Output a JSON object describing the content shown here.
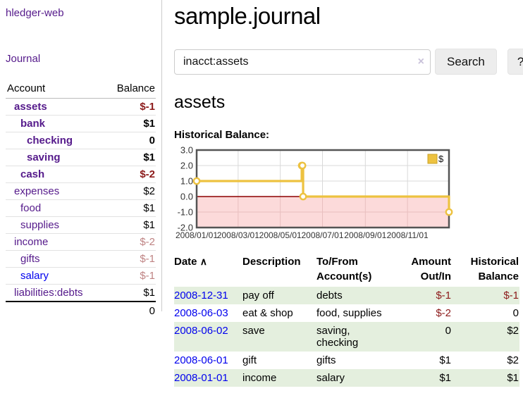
{
  "app": {
    "brand": "hledger-web",
    "nav": {
      "journal": "Journal"
    }
  },
  "sidebar": {
    "headers": {
      "account": "Account",
      "balance": "Balance"
    },
    "accounts": [
      {
        "name": "assets",
        "balance": "$-1",
        "depth": 1,
        "bold": true,
        "link": "purple",
        "bal_class": "neg-strong"
      },
      {
        "name": "bank",
        "balance": "$1",
        "depth": 2,
        "bold": true,
        "link": "purple",
        "bal_class": ""
      },
      {
        "name": "checking",
        "balance": "0",
        "depth": 3,
        "bold": true,
        "link": "purple",
        "bal_class": ""
      },
      {
        "name": "saving",
        "balance": "$1",
        "depth": 3,
        "bold": true,
        "link": "purple",
        "bal_class": ""
      },
      {
        "name": "cash",
        "balance": "$-2",
        "depth": 2,
        "bold": true,
        "link": "purple",
        "bal_class": "neg-strong"
      },
      {
        "name": "expenses",
        "balance": "$2",
        "depth": 1,
        "bold": false,
        "link": "purple",
        "bal_class": ""
      },
      {
        "name": "food",
        "balance": "$1",
        "depth": 2,
        "bold": false,
        "link": "purple",
        "bal_class": ""
      },
      {
        "name": "supplies",
        "balance": "$1",
        "depth": 2,
        "bold": false,
        "link": "purple",
        "bal_class": ""
      },
      {
        "name": "income",
        "balance": "$-2",
        "depth": 1,
        "bold": false,
        "link": "purple",
        "bal_class": "neg-soft"
      },
      {
        "name": "gifts",
        "balance": "$-1",
        "depth": 2,
        "bold": false,
        "link": "purple",
        "bal_class": "neg-soft"
      },
      {
        "name": "salary",
        "balance": "$-1",
        "depth": 2,
        "bold": false,
        "link": "blue",
        "bal_class": "neg-soft"
      },
      {
        "name": "liabilities:debts",
        "balance": "$1",
        "depth": 1,
        "bold": false,
        "link": "purple",
        "bal_class": ""
      }
    ],
    "total": "0"
  },
  "main": {
    "title": "sample.journal",
    "search": {
      "value": "inacct:assets",
      "clear_icon": "×",
      "button_label": "Search",
      "help_label": "?"
    },
    "section_title": "assets",
    "chart_label": "Historical Balance:"
  },
  "chart_data": {
    "type": "line",
    "title": "Historical Balance",
    "steps": true,
    "x_range": [
      "2008-01-01",
      "2008-12-31"
    ],
    "ylim": [
      -2,
      3
    ],
    "y_ticks": [
      "3.0",
      "2.0",
      "1.0",
      "0.0",
      "-1.0",
      "-2.0"
    ],
    "y_tick_values": [
      3,
      2,
      1,
      0,
      -1,
      -2
    ],
    "x_tick_dates": [
      "2008-01-01",
      "2008-03-01",
      "2008-05-01",
      "2008-07-01",
      "2008-09-01",
      "2008-11-01"
    ],
    "x_tick_labels": [
      "2008/01/01",
      "2008/03/01",
      "2008/05/01",
      "2008/07/01",
      "2008/09/01",
      "2008/11/01"
    ],
    "series": [
      {
        "name": "$",
        "color": "#edc240",
        "points": [
          [
            "2008-01-01",
            1
          ],
          [
            "2008-06-01",
            2
          ],
          [
            "2008-06-02",
            2
          ],
          [
            "2008-06-03",
            0
          ],
          [
            "2008-12-31",
            -1
          ]
        ]
      }
    ],
    "legend": {
      "label": "$",
      "position": "top-right"
    },
    "zero_line_color": "#8b0000",
    "negative_region_fill": "#fcdada",
    "grid_color": "#d9d9d9",
    "grid_color_negative": "#e8bfbf",
    "border_color": "#545454"
  },
  "register": {
    "headers": {
      "date": "Date",
      "sort_icon": "∧",
      "description": "Description",
      "accounts": "To/From Account(s)",
      "amount": "Amount Out/In",
      "balance": "Historical Balance"
    },
    "rows": [
      {
        "date": "2008-12-31",
        "description": "pay off",
        "accounts": "debts",
        "amount": "$-1",
        "amount_neg": true,
        "balance": "$-1",
        "balance_neg": true,
        "shade": true
      },
      {
        "date": "2008-06-03",
        "description": "eat & shop",
        "accounts": "food, supplies",
        "amount": "$-2",
        "amount_neg": true,
        "balance": "0",
        "balance_neg": false,
        "shade": false
      },
      {
        "date": "2008-06-02",
        "description": "save",
        "accounts": "saving, checking",
        "amount": "0",
        "amount_neg": false,
        "balance": "$2",
        "balance_neg": false,
        "shade": true
      },
      {
        "date": "2008-06-01",
        "description": "gift",
        "accounts": "gifts",
        "amount": "$1",
        "amount_neg": false,
        "balance": "$2",
        "balance_neg": false,
        "shade": false
      },
      {
        "date": "2008-01-01",
        "description": "income",
        "accounts": "salary",
        "amount": "$1",
        "amount_neg": false,
        "balance": "$1",
        "balance_neg": false,
        "shade": true
      }
    ]
  }
}
